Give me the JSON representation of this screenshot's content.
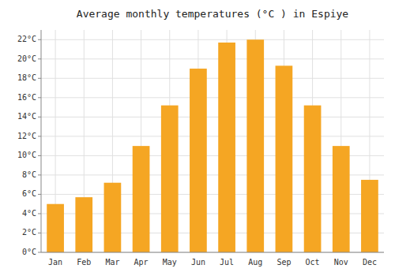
{
  "chart_data": {
    "type": "bar",
    "title": "Average monthly temperatures (°C ) in Espiye",
    "categories": [
      "Jan",
      "Feb",
      "Mar",
      "Apr",
      "May",
      "Jun",
      "Jul",
      "Aug",
      "Sep",
      "Oct",
      "Nov",
      "Dec"
    ],
    "values": [
      5.0,
      5.7,
      7.2,
      11.0,
      15.2,
      19.0,
      21.7,
      22.0,
      19.3,
      15.2,
      11.0,
      7.5
    ],
    "color": "#F5A623",
    "ylim": [
      0,
      23
    ],
    "yticks": [
      {
        "value": 0,
        "label": "0°C"
      },
      {
        "value": 2,
        "label": "2°C"
      },
      {
        "value": 4,
        "label": "4°C"
      },
      {
        "value": 6,
        "label": "6°C"
      },
      {
        "value": 8,
        "label": "8°C"
      },
      {
        "value": 10,
        "label": "10°C"
      },
      {
        "value": 12,
        "label": "12°C"
      },
      {
        "value": 14,
        "label": "14°C"
      },
      {
        "value": 16,
        "label": "16°C"
      },
      {
        "value": 18,
        "label": "18°C"
      },
      {
        "value": 20,
        "label": "20°C"
      },
      {
        "value": 22,
        "label": "22°C"
      }
    ],
    "grid": true
  }
}
